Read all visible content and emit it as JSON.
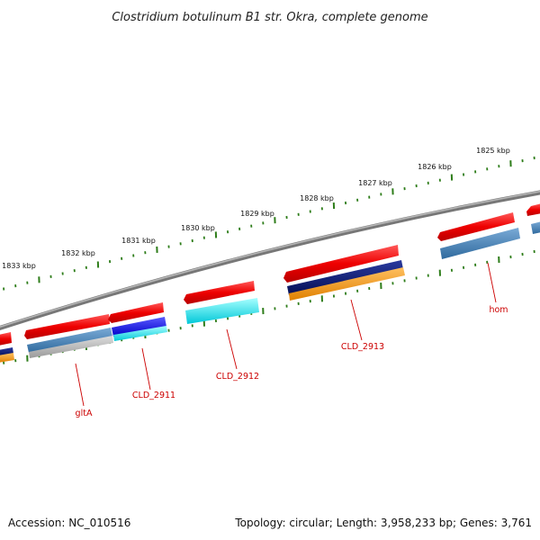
{
  "title": "Clostridium botulinum B1 str. Okra, complete genome",
  "accession": "Accession: NC_010516",
  "summary": "Topology: circular; Length: 3,958,233 bp; Genes: 3,761",
  "colors": {
    "backbone": "#7a7a7a",
    "ticks": "#2e7d1a",
    "gene_label": "#cc0000",
    "cds_forward": "#ee0000",
    "navy": "#0a1a6e",
    "orange": "#f29a1e",
    "steel_blue": "#4682b4",
    "cyan": "#00e5ee",
    "blue": "#1414e6",
    "gray": "#b0b0b0"
  },
  "tick_labels": [
    "1825 kbp",
    "1826 kbp",
    "1827 kbp",
    "1828 kbp",
    "1829 kbp",
    "1830 kbp",
    "1831 kbp",
    "1832 kbp",
    "1833 kbp"
  ],
  "gene_labels": [
    "hom",
    "CLD_2913",
    "CLD_2912",
    "CLD_2911",
    "gltA"
  ]
}
